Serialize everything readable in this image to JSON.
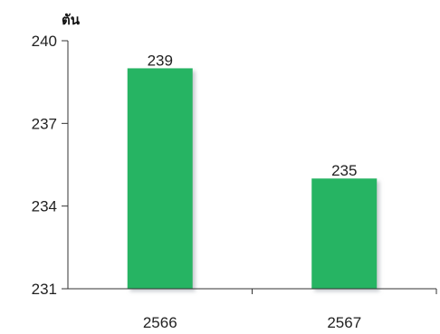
{
  "chart_data": {
    "type": "bar",
    "categories": [
      "2566",
      "2567"
    ],
    "values": [
      239,
      235
    ],
    "title": "",
    "xlabel": "",
    "ylabel": "ตัน",
    "ylim": [
      231,
      240
    ],
    "yticks": [
      231,
      234,
      237,
      240
    ],
    "grid": false,
    "legend": "none",
    "bar_color": "#25b463",
    "bar_shadow_color": "#c9ccd1"
  }
}
